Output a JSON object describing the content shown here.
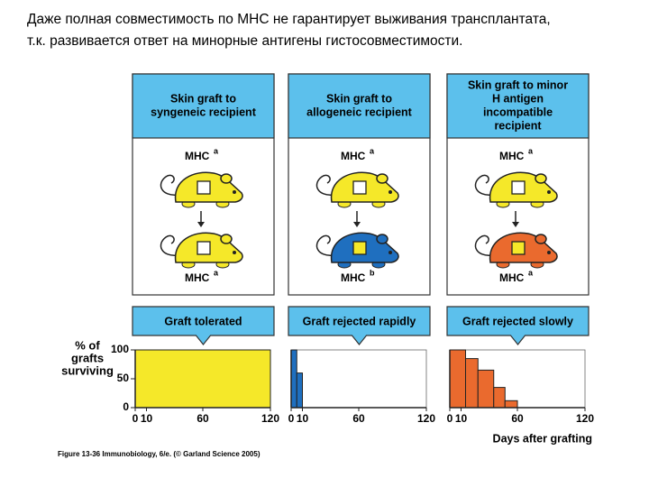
{
  "title_lines": [
    "Даже полная совместимость по МНС не гарантирует выживания трансплантата,",
    "т.к. развивается ответ на минорные антигены гистосовместимости."
  ],
  "panels": [
    {
      "header_lines": [
        "Skin graft to",
        "syngeneic recipient"
      ],
      "top_mhc": "MHC",
      "top_allele": "a",
      "bottom_mhc": "MHC",
      "bottom_allele": "a",
      "top_color": "#f5e829",
      "bottom_color": "#f5e829",
      "result": "Graft tolerated"
    },
    {
      "header_lines": [
        "Skin graft to",
        "allogeneic recipient"
      ],
      "top_mhc": "MHC",
      "top_allele": "a",
      "bottom_mhc": "MHC",
      "bottom_allele": "b",
      "top_color": "#f5e829",
      "bottom_color": "#1f6fbf",
      "result": "Graft rejected rapidly"
    },
    {
      "header_lines": [
        "Skin graft to minor",
        "H antigen",
        "incompatible",
        "recipient"
      ],
      "top_mhc": "MHC",
      "top_allele": "a",
      "bottom_mhc": "MHC",
      "bottom_allele": "a",
      "top_color": "#f5e829",
      "bottom_color": "#ea6a2e",
      "result": "Graft rejected slowly"
    }
  ],
  "chart_data": [
    {
      "type": "step",
      "ylabel": [
        "% of",
        "grafts",
        "surviving"
      ],
      "x": [
        0,
        120
      ],
      "values": [
        100,
        100
      ],
      "color": "#f5e829",
      "xlim": [
        0,
        120
      ],
      "ylim": [
        0,
        100
      ],
      "xticks": [
        0,
        10,
        60,
        120
      ],
      "yticks": [
        0,
        50,
        100
      ]
    },
    {
      "type": "step",
      "x": [
        0,
        5,
        10
      ],
      "values": [
        100,
        60,
        0
      ],
      "color": "#1f6fbf",
      "xlim": [
        0,
        120
      ],
      "ylim": [
        0,
        100
      ],
      "xticks": [
        0,
        10,
        60,
        120
      ]
    },
    {
      "type": "step",
      "xlabel": "Days after grafting",
      "x": [
        0,
        14,
        25,
        39,
        49,
        60
      ],
      "values": [
        100,
        85,
        65,
        35,
        12,
        0
      ],
      "color": "#ea6a2e",
      "xlim": [
        0,
        120
      ],
      "ylim": [
        0,
        100
      ],
      "xticks": [
        0,
        10,
        60,
        120
      ]
    }
  ],
  "credit": "Figure 13-36  Immunobiology, 6/e. (© Garland Science 2005)"
}
